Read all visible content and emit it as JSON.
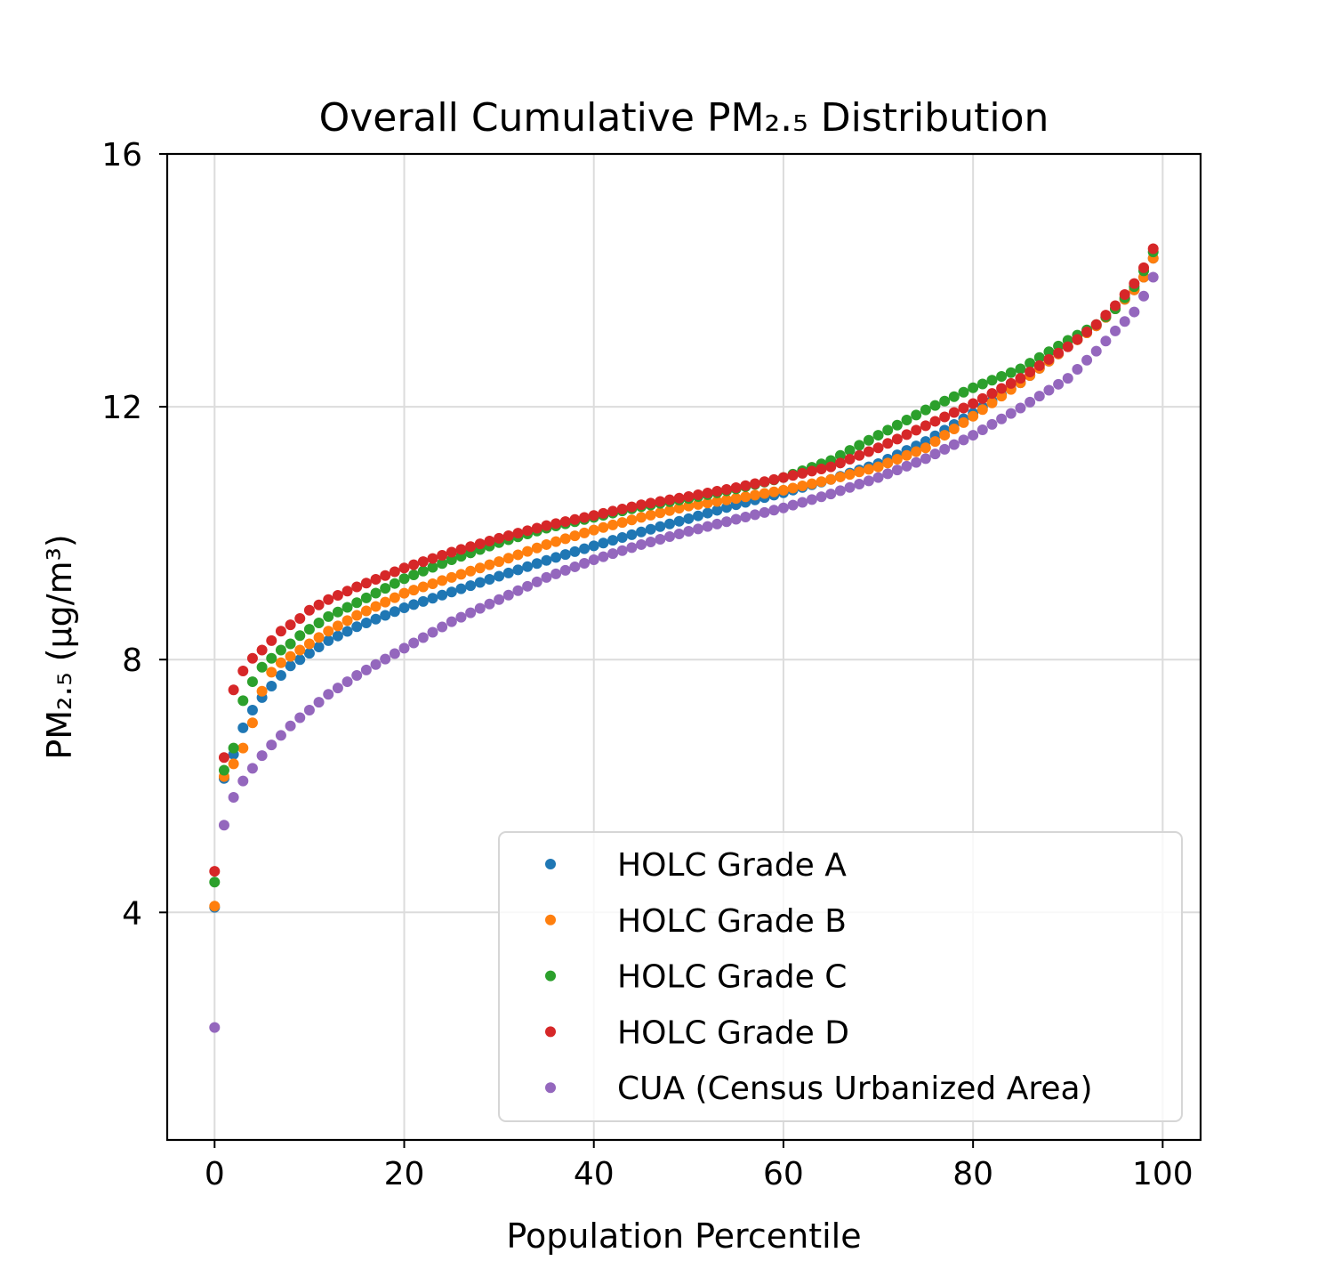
{
  "chart_data": {
    "type": "scatter",
    "title": "Overall Cumulative PM₂.₅ Distribution",
    "xlabel": "Population Percentile",
    "ylabel": "PM₂.₅ (µg/m³)",
    "xlim": [
      -5,
      104
    ],
    "ylim": [
      0.4,
      16
    ],
    "xticks": [
      0,
      20,
      40,
      60,
      80,
      100
    ],
    "yticks": [
      4,
      8,
      12,
      16
    ],
    "xtick_labels": [
      "0",
      "20",
      "40",
      "60",
      "80",
      "100"
    ],
    "ytick_labels": [
      "4",
      "8",
      "12",
      "16"
    ],
    "grid": true,
    "legend_position": "lower-right",
    "x_range": [
      0,
      99
    ],
    "series": [
      {
        "name": "HOLC Grade A",
        "color": "#1f77b4",
        "knots": [
          [
            0,
            4.08
          ],
          [
            1,
            6.12
          ],
          [
            2,
            6.5
          ],
          [
            3,
            6.92
          ],
          [
            4,
            7.2
          ],
          [
            5,
            7.4
          ],
          [
            6,
            7.58
          ],
          [
            7,
            7.75
          ],
          [
            8,
            7.9
          ],
          [
            9,
            8.0
          ],
          [
            10,
            8.1
          ],
          [
            12,
            8.3
          ],
          [
            15,
            8.52
          ],
          [
            20,
            8.82
          ],
          [
            25,
            9.07
          ],
          [
            30,
            9.32
          ],
          [
            35,
            9.57
          ],
          [
            40,
            9.8
          ],
          [
            45,
            10.02
          ],
          [
            50,
            10.23
          ],
          [
            55,
            10.45
          ],
          [
            60,
            10.64
          ],
          [
            65,
            10.85
          ],
          [
            70,
            11.1
          ],
          [
            75,
            11.45
          ],
          [
            80,
            11.9
          ],
          [
            85,
            12.38
          ],
          [
            90,
            12.95
          ],
          [
            93,
            13.28
          ],
          [
            95,
            13.55
          ],
          [
            97,
            13.85
          ],
          [
            98,
            14.05
          ],
          [
            99,
            14.35
          ]
        ]
      },
      {
        "name": "HOLC Grade B",
        "color": "#ff7f0e",
        "knots": [
          [
            0,
            4.1
          ],
          [
            1,
            6.15
          ],
          [
            2,
            6.35
          ],
          [
            3,
            6.6
          ],
          [
            4,
            7.0
          ],
          [
            5,
            7.5
          ],
          [
            6,
            7.8
          ],
          [
            7,
            7.95
          ],
          [
            8,
            8.05
          ],
          [
            9,
            8.15
          ],
          [
            10,
            8.25
          ],
          [
            12,
            8.45
          ],
          [
            15,
            8.7
          ],
          [
            20,
            9.05
          ],
          [
            25,
            9.3
          ],
          [
            30,
            9.55
          ],
          [
            35,
            9.82
          ],
          [
            40,
            10.05
          ],
          [
            45,
            10.25
          ],
          [
            50,
            10.43
          ],
          [
            55,
            10.55
          ],
          [
            60,
            10.68
          ],
          [
            65,
            10.85
          ],
          [
            70,
            11.05
          ],
          [
            75,
            11.35
          ],
          [
            80,
            11.85
          ],
          [
            85,
            12.38
          ],
          [
            90,
            12.95
          ],
          [
            93,
            13.28
          ],
          [
            95,
            13.55
          ],
          [
            97,
            13.85
          ],
          [
            98,
            14.05
          ],
          [
            99,
            14.35
          ]
        ]
      },
      {
        "name": "HOLC Grade C",
        "color": "#2ca02c",
        "knots": [
          [
            0,
            4.48
          ],
          [
            1,
            6.25
          ],
          [
            2,
            6.6
          ],
          [
            3,
            7.35
          ],
          [
            4,
            7.65
          ],
          [
            5,
            7.88
          ],
          [
            6,
            8.02
          ],
          [
            7,
            8.15
          ],
          [
            8,
            8.25
          ],
          [
            9,
            8.38
          ],
          [
            10,
            8.48
          ],
          [
            12,
            8.68
          ],
          [
            15,
            8.9
          ],
          [
            20,
            9.28
          ],
          [
            25,
            9.58
          ],
          [
            30,
            9.85
          ],
          [
            35,
            10.08
          ],
          [
            40,
            10.25
          ],
          [
            45,
            10.42
          ],
          [
            50,
            10.55
          ],
          [
            55,
            10.7
          ],
          [
            60,
            10.88
          ],
          [
            65,
            11.15
          ],
          [
            70,
            11.55
          ],
          [
            75,
            11.95
          ],
          [
            80,
            12.3
          ],
          [
            85,
            12.6
          ],
          [
            90,
            13.05
          ],
          [
            93,
            13.3
          ],
          [
            95,
            13.55
          ],
          [
            97,
            13.9
          ],
          [
            98,
            14.15
          ],
          [
            99,
            14.45
          ]
        ]
      },
      {
        "name": "HOLC Grade D",
        "color": "#d62728",
        "knots": [
          [
            0,
            4.65
          ],
          [
            1,
            6.45
          ],
          [
            2,
            7.52
          ],
          [
            3,
            7.82
          ],
          [
            4,
            8.02
          ],
          [
            5,
            8.15
          ],
          [
            6,
            8.3
          ],
          [
            7,
            8.45
          ],
          [
            8,
            8.55
          ],
          [
            9,
            8.65
          ],
          [
            10,
            8.78
          ],
          [
            12,
            8.95
          ],
          [
            15,
            9.15
          ],
          [
            20,
            9.45
          ],
          [
            25,
            9.7
          ],
          [
            30,
            9.92
          ],
          [
            35,
            10.12
          ],
          [
            40,
            10.28
          ],
          [
            45,
            10.45
          ],
          [
            50,
            10.58
          ],
          [
            55,
            10.72
          ],
          [
            60,
            10.88
          ],
          [
            65,
            11.05
          ],
          [
            70,
            11.35
          ],
          [
            75,
            11.7
          ],
          [
            80,
            12.05
          ],
          [
            85,
            12.45
          ],
          [
            90,
            12.95
          ],
          [
            93,
            13.3
          ],
          [
            95,
            13.6
          ],
          [
            97,
            13.95
          ],
          [
            98,
            14.2
          ],
          [
            99,
            14.5
          ]
        ]
      },
      {
        "name": "CUA (Census Urbanized Area)",
        "color": "#9467bd",
        "knots": [
          [
            0,
            2.18
          ],
          [
            1,
            5.38
          ],
          [
            2,
            5.82
          ],
          [
            3,
            6.08
          ],
          [
            4,
            6.28
          ],
          [
            5,
            6.48
          ],
          [
            6,
            6.65
          ],
          [
            7,
            6.8
          ],
          [
            8,
            6.95
          ],
          [
            9,
            7.08
          ],
          [
            10,
            7.2
          ],
          [
            12,
            7.45
          ],
          [
            15,
            7.75
          ],
          [
            20,
            8.18
          ],
          [
            25,
            8.6
          ],
          [
            30,
            8.95
          ],
          [
            35,
            9.3
          ],
          [
            40,
            9.58
          ],
          [
            45,
            9.82
          ],
          [
            50,
            10.03
          ],
          [
            55,
            10.22
          ],
          [
            60,
            10.4
          ],
          [
            65,
            10.62
          ],
          [
            70,
            10.88
          ],
          [
            75,
            11.18
          ],
          [
            80,
            11.55
          ],
          [
            85,
            11.98
          ],
          [
            90,
            12.45
          ],
          [
            93,
            12.88
          ],
          [
            95,
            13.2
          ],
          [
            97,
            13.5
          ],
          [
            98,
            13.75
          ],
          [
            99,
            14.05
          ]
        ]
      }
    ]
  }
}
